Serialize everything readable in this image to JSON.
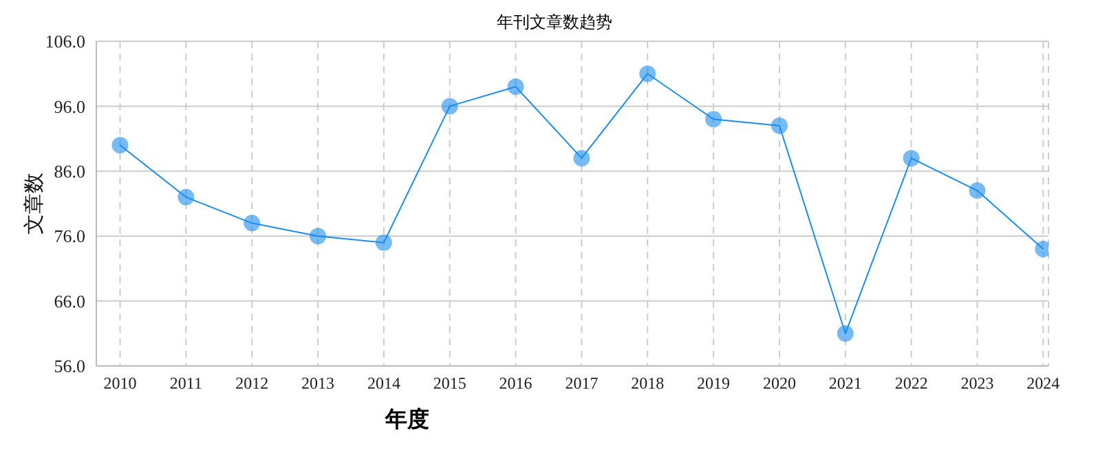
{
  "chart_data": {
    "type": "line",
    "title": "年刊文章数趋势",
    "xlabel": "年度",
    "ylabel": "文章数",
    "categories": [
      "2010",
      "2011",
      "2012",
      "2013",
      "2014",
      "2015",
      "2016",
      "2017",
      "2018",
      "2019",
      "2020",
      "2021",
      "2022",
      "2023",
      "2024"
    ],
    "series": [
      {
        "color": "#1a8cf0",
        "values": [
          90,
          82,
          78,
          76,
          75,
          96,
          99,
          88,
          101,
          94,
          93,
          61,
          88,
          83,
          74
        ]
      }
    ],
    "ylim": [
      56,
      106
    ],
    "yticks": [
      {
        "value": 56,
        "label": "56.0"
      },
      {
        "value": 66,
        "label": "66.0"
      },
      {
        "value": 76,
        "label": "76.0"
      },
      {
        "value": 86,
        "label": "86.0"
      },
      {
        "value": 96,
        "label": "96.0"
      },
      {
        "value": 106,
        "label": "106.0"
      }
    ],
    "grid": true,
    "marker": "circle",
    "line_style": "solid",
    "legend": false
  }
}
